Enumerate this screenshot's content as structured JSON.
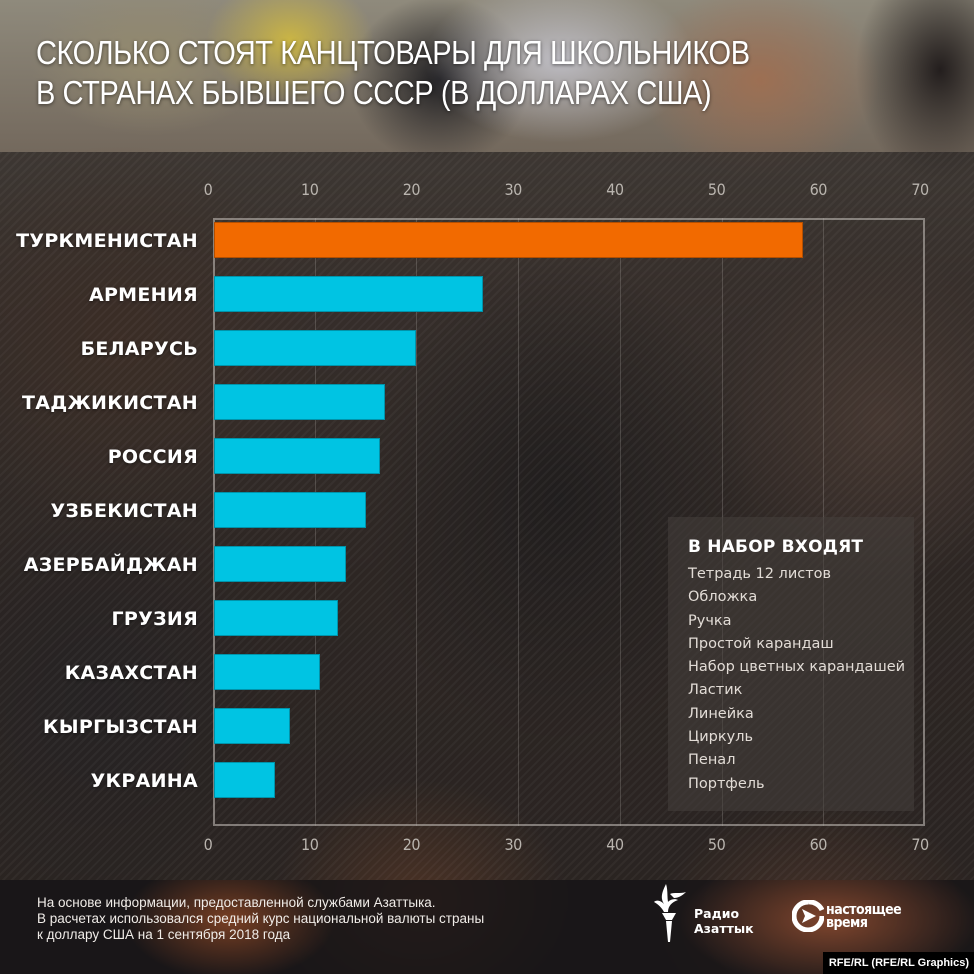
{
  "title": {
    "line1": "СКОЛЬКО СТОЯТ КАНЦТОВАРЫ ДЛЯ ШКОЛЬНИКОВ",
    "line2": "В СТРАНАХ БЫВШЕГО СССР (В ДОЛЛАРАХ США)"
  },
  "axis": {
    "ticks": [
      "0",
      "10",
      "20",
      "30",
      "40",
      "50",
      "60",
      "70"
    ]
  },
  "legend": {
    "title": "В НАБОР ВХОДЯТ",
    "items": [
      "Тетрадь 12 листов",
      "Обложка",
      "Ручка",
      "Простой карандаш",
      "Набор цветных карандашей",
      "Ластик",
      "Линейка",
      "Циркуль",
      "Пенал",
      "Портфель"
    ]
  },
  "footer": {
    "source_line1": "На основе информации, предоставленной службами Азаттыка.",
    "source_line2": "В расчетах использовался средний курс национальной валюты страны",
    "source_line3": "к доллару США на 1 сентября 2018 года",
    "logo1_line1": "Радио",
    "logo1_line2": "Азаттык",
    "logo2_line1": "настоящее",
    "logo2_line2": "время",
    "credit": "RFE/RL (RFE/RL Graphics)"
  },
  "colors": {
    "highlight": "#f26a00",
    "bar": "#00c4e3"
  },
  "chart_data": {
    "type": "bar",
    "orientation": "horizontal",
    "title": "Сколько стоят канцтовары для школьников в странах бывшего СССР (в долларах США)",
    "xlabel": "",
    "ylabel": "",
    "xlim": [
      0,
      70
    ],
    "xticks": [
      0,
      10,
      20,
      30,
      40,
      50,
      60,
      70
    ],
    "grid": true,
    "categories": [
      "ТУРКМЕНИСТАН",
      "АРМЕНИЯ",
      "БЕЛАРУСЬ",
      "ТАДЖИКИСТАН",
      "РОССИЯ",
      "УЗБЕКИСТАН",
      "АЗЕРБАЙДЖАН",
      "ГРУЗИЯ",
      "КАЗАХСТАН",
      "КЫРГЫЗСТАН",
      "УКРАИНА"
    ],
    "values": [
      58.0,
      26.5,
      20.0,
      16.9,
      16.4,
      15.0,
      13.1,
      12.3,
      10.5,
      7.6,
      6.1
    ],
    "highlighted": [
      "ТУРКМЕНИСТАН"
    ],
    "legend_position": "inside-bottom-right"
  }
}
